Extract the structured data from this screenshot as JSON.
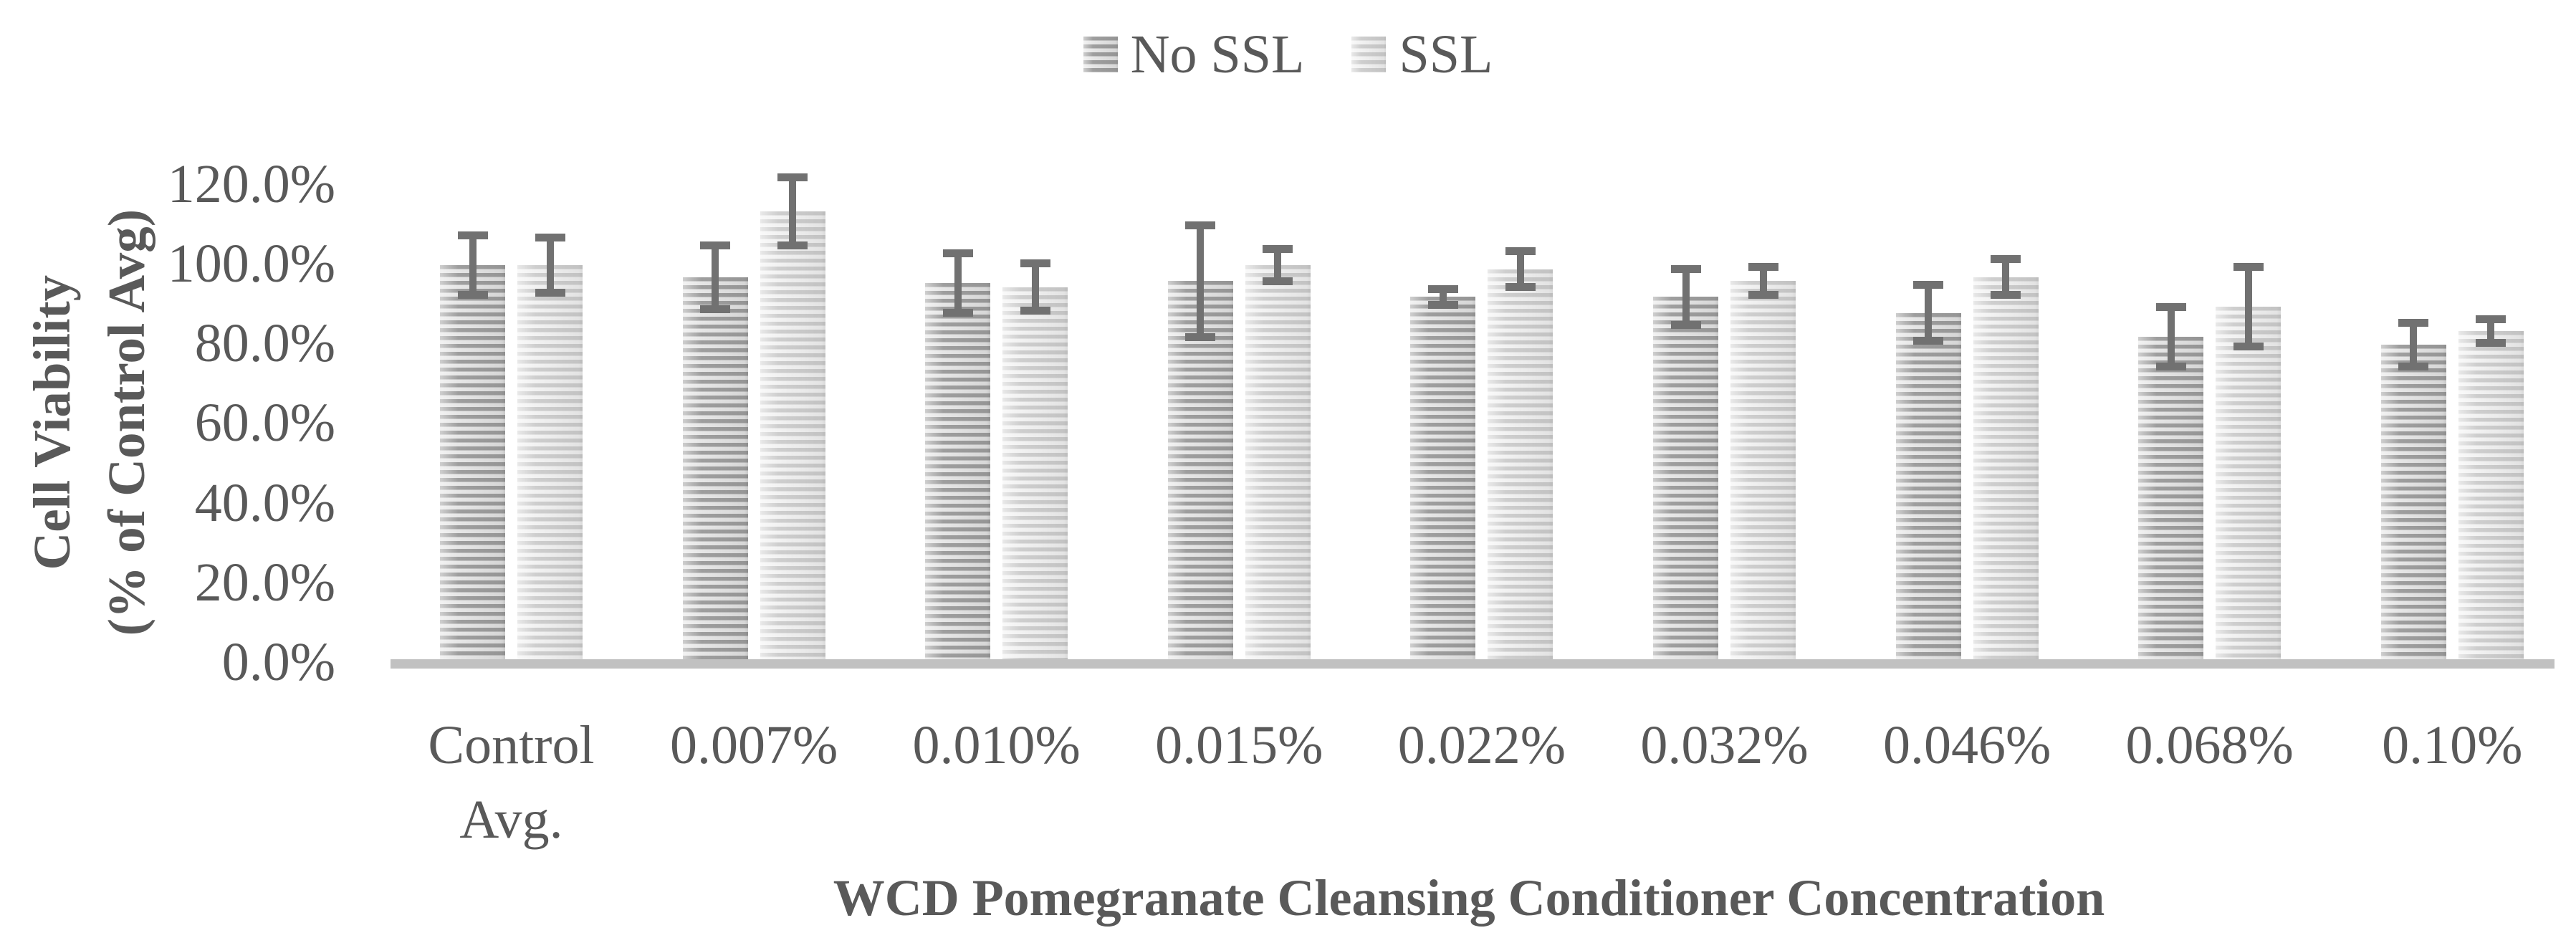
{
  "legend": {
    "items": [
      {
        "label": "No SSL",
        "swatch": "striped-dark-gray"
      },
      {
        "label": "SSL",
        "swatch": "striped-light-gray"
      }
    ]
  },
  "y_axis": {
    "title_line1": "Cell Viability",
    "title_line2": "(% of Control Avg)",
    "tick_values": [
      0,
      20,
      40,
      60,
      80,
      100,
      120
    ],
    "tick_labels": [
      "0.0%",
      "20.0%",
      "40.0%",
      "60.0%",
      "80.0%",
      "100.0%",
      "120.0%"
    ]
  },
  "x_axis": {
    "title": "WCD Pomegranate Cleansing Conditioner Concentration",
    "categories_lines": [
      [
        "Control",
        "Avg."
      ],
      [
        "0.007%"
      ],
      [
        "0.010%"
      ],
      [
        "0.015%"
      ],
      [
        "0.022%"
      ],
      [
        "0.032%"
      ],
      [
        "0.046%"
      ],
      [
        "0.068%"
      ],
      [
        "0.10%"
      ]
    ]
  },
  "chart_data": {
    "type": "bar",
    "title": "",
    "categories": [
      "Control Avg.",
      "0.007%",
      "0.010%",
      "0.015%",
      "0.022%",
      "0.032%",
      "0.046%",
      "0.068%",
      "0.10%"
    ],
    "series": [
      {
        "name": "No SSL",
        "values": [
          100.0,
          97.0,
          95.5,
          96.0,
          92.0,
          92.0,
          88.0,
          82.0,
          80.0
        ],
        "errors": [
          7.5,
          8.0,
          7.5,
          14.0,
          2.0,
          7.0,
          7.0,
          7.5,
          5.5
        ]
      },
      {
        "name": "SSL",
        "values": [
          100.0,
          113.5,
          94.5,
          100.0,
          99.0,
          96.0,
          97.0,
          89.5,
          83.5
        ],
        "errors": [
          7.0,
          8.5,
          6.0,
          4.0,
          4.5,
          3.5,
          4.5,
          10.0,
          3.0
        ]
      }
    ],
    "xlabel": "WCD Pomegranate Cleansing Conditioner Concentration",
    "ylabel": "Cell Viability (% of Control Avg)",
    "ylim": [
      0,
      120
    ],
    "y_tick_step": 20,
    "grid": false,
    "error_bars": true,
    "legend_position": "top-center"
  },
  "colors": {
    "no_ssl_stripe_dark": "#9e9e9e",
    "no_ssl_stripe_light": "#e6e6e6",
    "ssl_stripe_dark": "#cecece",
    "ssl_stripe_light": "#f2f2f2",
    "error_bar": "#717171",
    "axis_line": "#c1c1c1",
    "text": "#595959",
    "background": "#ffffff"
  }
}
